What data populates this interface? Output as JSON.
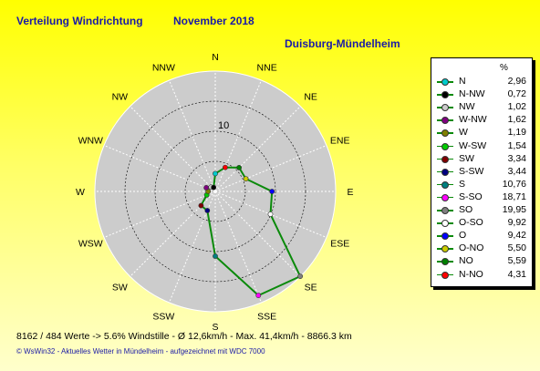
{
  "header": {
    "title": "Verteilung Windrichtung",
    "month": "November 2018",
    "station": "Duisburg-Mündelheim"
  },
  "footer": {
    "stats": "8162 / 484 Werte  -> 5.6% Windstille   -   Ø 12,6km/h   -   Max. 41,4km/h   -    8866.3 km",
    "credit": "© WsWin32  -  Aktuelles Wetter in Mündelheim  -  aufgezeichnet mit WDC 7000"
  },
  "legend": {
    "unit": "%",
    "items": [
      {
        "name": "N",
        "value": "2,96",
        "color": "#00cccc"
      },
      {
        "name": "N-NW",
        "value": "0,72",
        "color": "#000000"
      },
      {
        "name": "NW",
        "value": "1,02",
        "color": "#cccccc"
      },
      {
        "name": "W-NW",
        "value": "1,62",
        "color": "#800080"
      },
      {
        "name": "W",
        "value": "1,19",
        "color": "#808000"
      },
      {
        "name": "W-SW",
        "value": "1,54",
        "color": "#00cc00"
      },
      {
        "name": "SW",
        "value": "3,34",
        "color": "#800000"
      },
      {
        "name": "S-SW",
        "value": "3,44",
        "color": "#000080"
      },
      {
        "name": "S",
        "value": "10,76",
        "color": "#008080"
      },
      {
        "name": "S-SO",
        "value": "18,71",
        "color": "#ff00ff"
      },
      {
        "name": "SO",
        "value": "19,95",
        "color": "#808080"
      },
      {
        "name": "O-SO",
        "value": "9,92",
        "color": "#ffffff"
      },
      {
        "name": "O",
        "value": "9,42",
        "color": "#0000ff"
      },
      {
        "name": "O-NO",
        "value": "5,50",
        "color": "#cccc00"
      },
      {
        "name": "NO",
        "value": "5,59",
        "color": "#008000"
      },
      {
        "name": "N-NO",
        "value": "4,31",
        "color": "#ff0000"
      }
    ]
  },
  "chart_data": {
    "type": "radar",
    "unit": "%",
    "rmax": 20,
    "ring_step": 5,
    "ring_label": "10",
    "directions": [
      "N",
      "NNE",
      "NE",
      "ENE",
      "E",
      "ESE",
      "SE",
      "SSE",
      "S",
      "SSW",
      "SW",
      "WSW",
      "W",
      "WNW",
      "NW",
      "NNW"
    ],
    "values": [
      2.96,
      4.31,
      5.59,
      5.5,
      9.42,
      9.92,
      19.95,
      18.71,
      10.76,
      3.44,
      3.34,
      1.54,
      1.19,
      1.62,
      1.02,
      0.72
    ],
    "point_colors": [
      "#00cccc",
      "#ff0000",
      "#008000",
      "#cccc00",
      "#0000ff",
      "#ffffff",
      "#808080",
      "#ff00ff",
      "#008080",
      "#000080",
      "#800000",
      "#00cc00",
      "#808000",
      "#800080",
      "#cccccc",
      "#000000"
    ],
    "line_color": "#0a8a0a",
    "plot_bg": "#cccccc"
  }
}
